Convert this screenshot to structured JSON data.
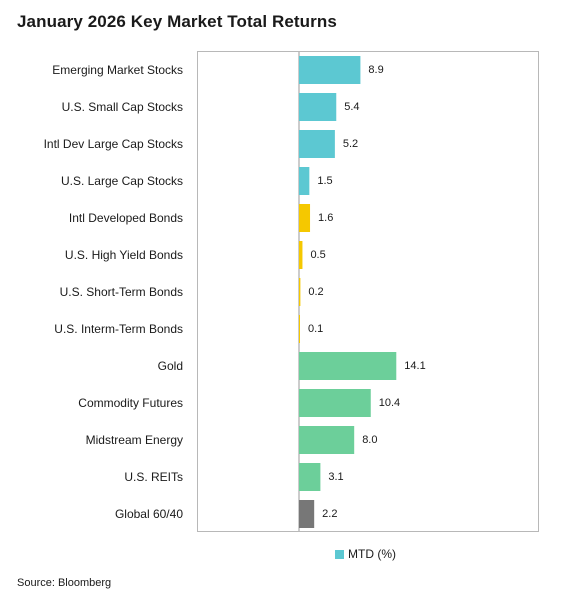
{
  "title": "January 2026 Key Market Total Returns",
  "source": "Source: Bloomberg",
  "legend": {
    "label": "MTD (%)",
    "color": "#5cc8d2"
  },
  "colors": {
    "equity": "#5cc8d2",
    "bonds": "#f5c800",
    "real_assets": "#6ccf9a",
    "blend": "#777777"
  },
  "chart_data": {
    "type": "bar",
    "orientation": "horizontal",
    "title": "January 2026 Key Market Total Returns",
    "xlabel": "",
    "ylabel": "",
    "xlim": [
      0,
      16
    ],
    "grid": false,
    "legend_position": "bottom",
    "categories": [
      "Emerging Market Stocks",
      "U.S. Small Cap Stocks",
      "Intl Dev Large Cap Stocks",
      "U.S. Large Cap Stocks",
      "Intl Developed Bonds",
      "U.S. High Yield Bonds",
      "U.S. Short-Term Bonds",
      "U.S. Interm-Term Bonds",
      "Gold",
      "Commodity Futures",
      "Midstream Energy",
      "U.S. REITs",
      "Global 60/40"
    ],
    "series": [
      {
        "name": "MTD (%)",
        "values": [
          8.9,
          5.4,
          5.2,
          1.5,
          1.6,
          0.5,
          0.2,
          0.1,
          14.1,
          10.4,
          8.0,
          3.1,
          2.2
        ],
        "value_labels": [
          "8.9",
          "5.4",
          "5.2",
          "1.5",
          "1.6",
          "0.5",
          "0.2",
          "0.1",
          "14.1",
          "10.4",
          "8.0",
          "3.1",
          "2.2"
        ],
        "bar_colors": [
          "#5cc8d2",
          "#5cc8d2",
          "#5cc8d2",
          "#5cc8d2",
          "#f5c800",
          "#f5c800",
          "#f5c800",
          "#f5c800",
          "#6ccf9a",
          "#6ccf9a",
          "#6ccf9a",
          "#6ccf9a",
          "#777777"
        ]
      }
    ]
  }
}
